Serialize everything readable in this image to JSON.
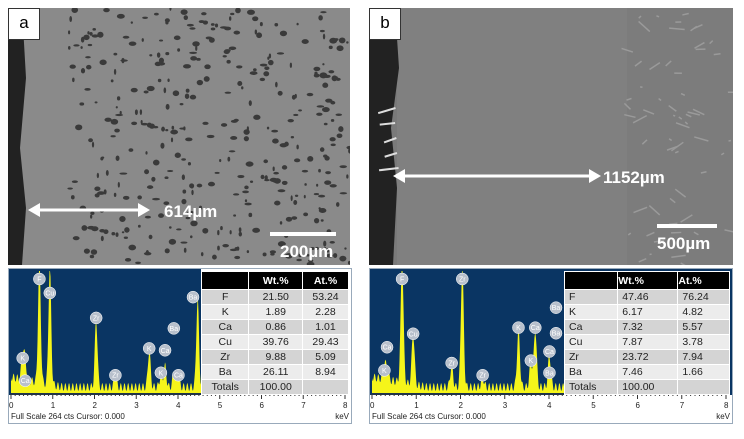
{
  "panels": [
    {
      "label": "a",
      "measurement": "614µm",
      "scale_bar": "200µm",
      "spectrum": {
        "footer": "Full Scale 264 cts Cursor: 0.000",
        "unit": "keV",
        "ticks": [
          "0",
          "1",
          "2",
          "3",
          "4",
          "5",
          "6",
          "7",
          "8"
        ],
        "peaks": [
          {
            "el": "K",
            "kev": 0.28,
            "h": 0.22
          },
          {
            "el": "Ca",
            "kev": 0.34,
            "h": 0.15
          },
          {
            "el": "F",
            "kev": 0.68,
            "h": 1.0
          },
          {
            "el": "Cu",
            "kev": 0.93,
            "h": 0.97
          },
          {
            "el": "Zr",
            "kev": 2.04,
            "h": 0.55
          },
          {
            "el": "Zr",
            "kev": 2.5,
            "h": 0.08
          },
          {
            "el": "K",
            "kev": 3.31,
            "h": 0.3
          },
          {
            "el": "K",
            "kev": 3.59,
            "h": 0.1
          },
          {
            "el": "Ca",
            "kev": 3.69,
            "h": 0.17
          },
          {
            "el": "Ba",
            "kev": 3.9,
            "h": 0.12
          },
          {
            "el": "Ca",
            "kev": 4.01,
            "h": 0.08
          },
          {
            "el": "Ba",
            "kev": 4.47,
            "h": 0.72
          }
        ],
        "table": {
          "headers": [
            "",
            "Wt.%",
            "At.%"
          ],
          "rows": [
            [
              "F",
              "21.50",
              "53.24"
            ],
            [
              "K",
              "1.89",
              "2.28"
            ],
            [
              "Ca",
              "0.86",
              "1.01"
            ],
            [
              "Cu",
              "39.76",
              "29.43"
            ],
            [
              "Zr",
              "9.88",
              "5.09"
            ],
            [
              "Ba",
              "26.11",
              "8.94"
            ],
            [
              "Totals",
              "100.00",
              ""
            ]
          ]
        }
      }
    },
    {
      "label": "b",
      "measurement": "1152µm",
      "scale_bar": "500µm",
      "spectrum": {
        "footer": "Full Scale 264 cts Cursor: 0.000",
        "unit": "keV",
        "ticks": [
          "0",
          "1",
          "2",
          "3",
          "4",
          "5",
          "6",
          "7",
          "8"
        ],
        "peaks": [
          {
            "el": "K",
            "kev": 0.28,
            "h": 0.12
          },
          {
            "el": "Ca",
            "kev": 0.34,
            "h": 0.08
          },
          {
            "el": "F",
            "kev": 0.68,
            "h": 1.0
          },
          {
            "el": "Cu",
            "kev": 0.93,
            "h": 0.42
          },
          {
            "el": "Zr",
            "kev": 1.8,
            "h": 0.18
          },
          {
            "el": "Zr",
            "kev": 2.04,
            "h": 1.0
          },
          {
            "el": "Zr",
            "kev": 2.5,
            "h": 0.08
          },
          {
            "el": "K",
            "kev": 3.31,
            "h": 0.47
          },
          {
            "el": "K",
            "kev": 3.59,
            "h": 0.2
          },
          {
            "el": "Ca",
            "kev": 3.69,
            "h": 0.47
          },
          {
            "el": "Ba",
            "kev": 4.01,
            "h": 0.1
          },
          {
            "el": "Ca",
            "kev": 4.01,
            "h": 0.16
          },
          {
            "el": "Ba",
            "kev": 4.47,
            "h": 0.08
          },
          {
            "el": "Ba",
            "kev": 4.83,
            "h": 0.06
          }
        ],
        "table": {
          "headers": [
            "",
            "Wt.%",
            "At.%"
          ],
          "rows": [
            [
              "F",
              "47.46",
              "76.24"
            ],
            [
              "K",
              "6.17",
              "4.82"
            ],
            [
              "Ca",
              "7.32",
              "5.57"
            ],
            [
              "Cu",
              "7.87",
              "3.78"
            ],
            [
              "Zr",
              "23.72",
              "7.94"
            ],
            [
              "Ba",
              "7.46",
              "1.66"
            ],
            [
              "Totals",
              "100.00",
              ""
            ]
          ]
        }
      }
    }
  ],
  "colors": {
    "spectrum_bg": "#0a3563",
    "spectrum_fill": "#f5f51a",
    "sem_gray": "#8a8a8a"
  }
}
